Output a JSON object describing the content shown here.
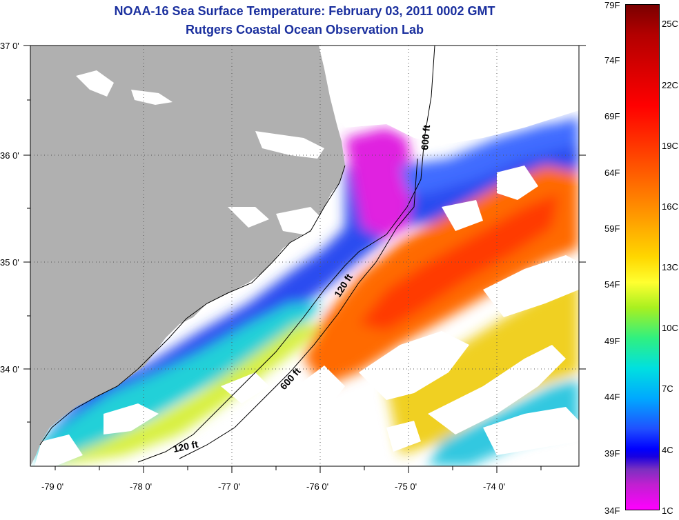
{
  "header": {
    "title": "NOAA-16 Sea Surface Temperature:  February 03, 2011 0002 GMT",
    "subtitle": "Rutgers Coastal Ocean Observation Lab"
  },
  "map": {
    "lat_labels": [
      "37 0'",
      "36 0'",
      "35 0'",
      "34 0'"
    ],
    "lon_labels": [
      "-79 0'",
      "-78 0'",
      "-77 0'",
      "-76 0'",
      "-75 0'",
      "-74 0'"
    ],
    "contour_labels": [
      "600 ft",
      "120 ft",
      "600 ft",
      "120 ft"
    ],
    "colors": {
      "land": "#b0b0b0",
      "cloud": "#ffffff"
    }
  },
  "colorbar": {
    "f_labels": [
      "79F",
      "74F",
      "69F",
      "64F",
      "59F",
      "54F",
      "49F",
      "44F",
      "39F",
      "34F"
    ],
    "c_labels": [
      "25C",
      "22C",
      "19C",
      "16C",
      "13C",
      "10C",
      "7C",
      "4C",
      "1C"
    ]
  }
}
